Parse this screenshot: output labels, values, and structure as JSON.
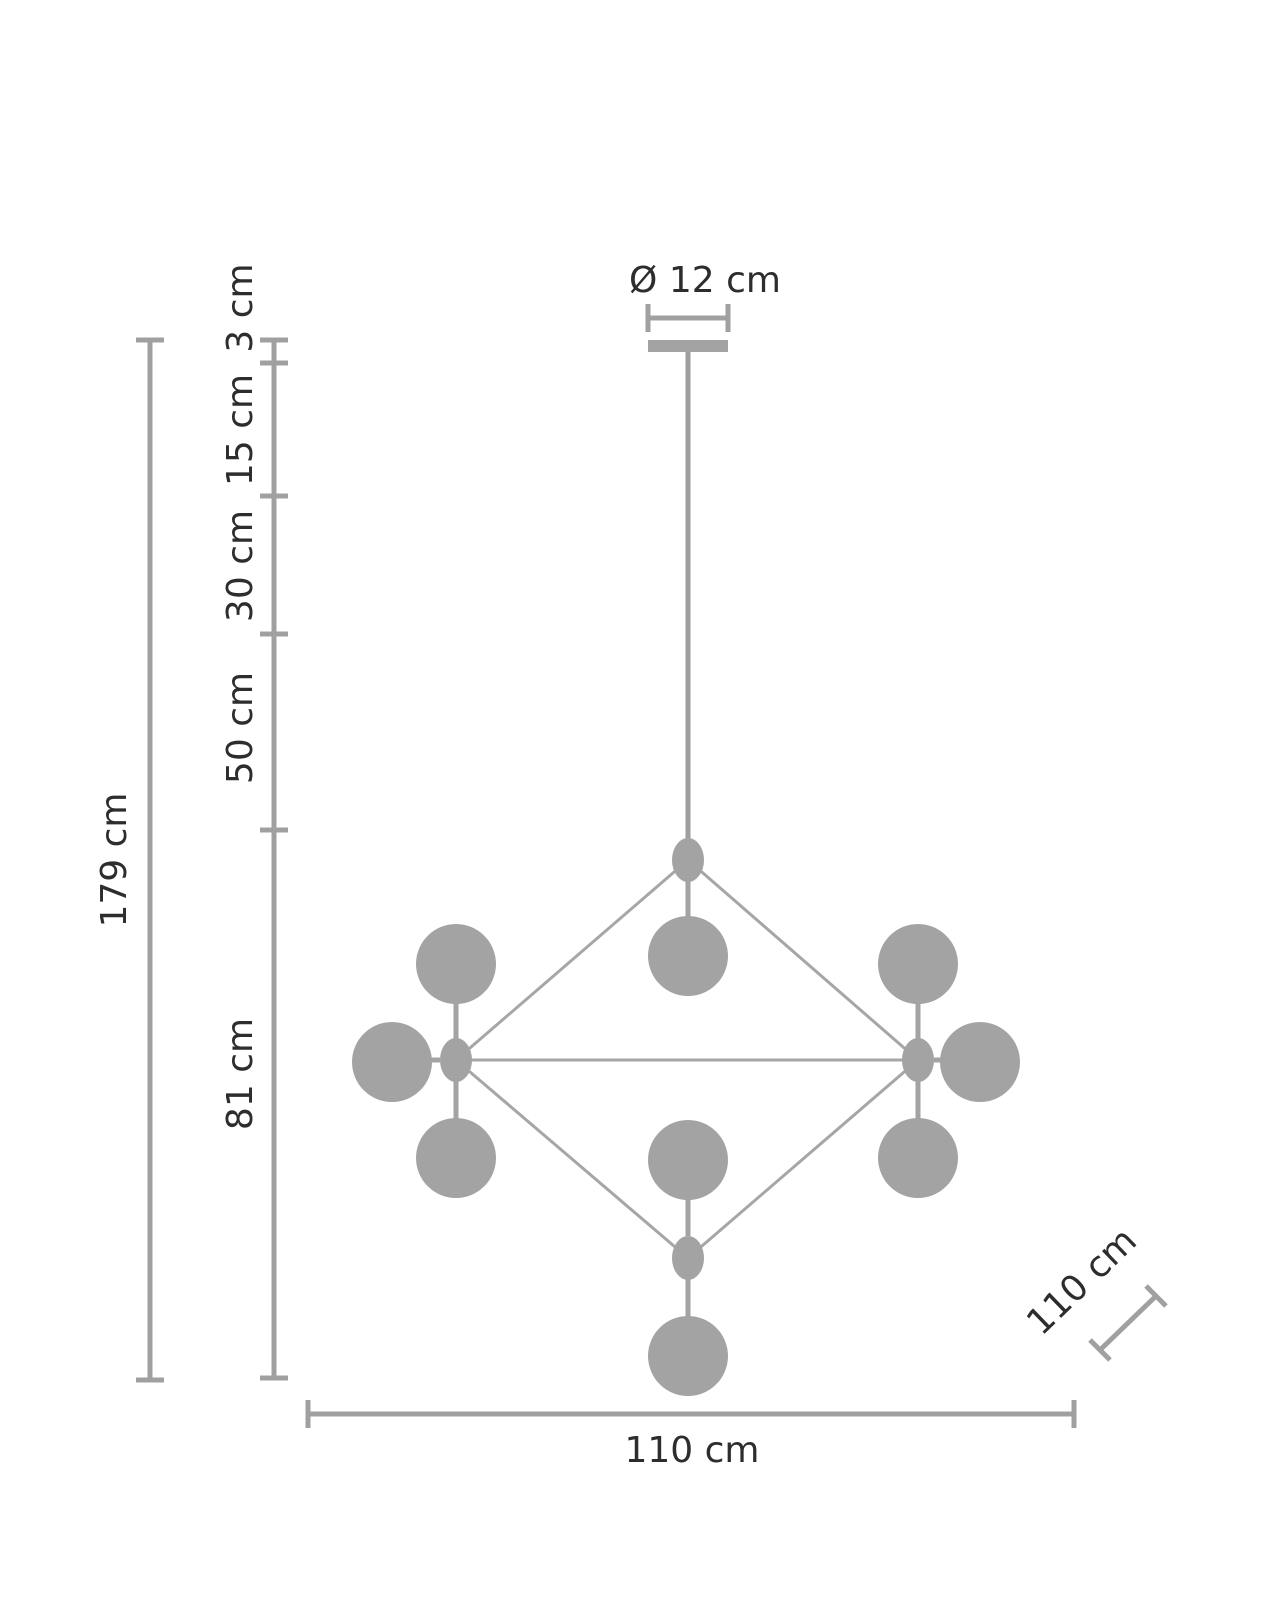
{
  "labels": {
    "canopy_diameter": "Ø 12 cm",
    "total_height": "179 cm",
    "segment_canopy": "3 cm",
    "segment_15": "15 cm",
    "segment_30": "30 cm",
    "segment_50": "50 cm",
    "segment_81": "81 cm",
    "width": "110 cm",
    "depth": "110 cm"
  },
  "colors": {
    "drawing_gray": "#a3a3a3",
    "text": "#2d2d2d",
    "background": "#ffffff"
  }
}
